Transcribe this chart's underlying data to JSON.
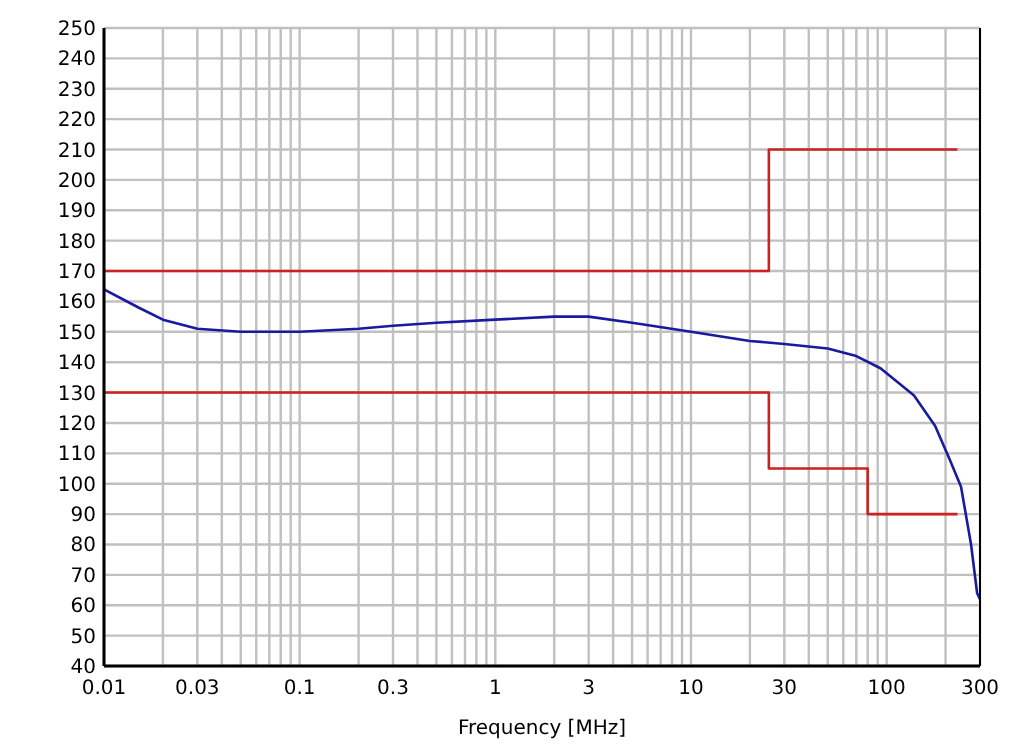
{
  "chart_data": {
    "type": "line",
    "xlabel": "Frequency [MHz]",
    "log": "x",
    "grid": true,
    "marker": "none",
    "line_style": "solid",
    "xlim": [
      0.01,
      300
    ],
    "ylim": [
      40,
      250
    ],
    "xticks": [
      0.01,
      0.03,
      0.1,
      0.3,
      1,
      3,
      10,
      30,
      100,
      300
    ],
    "yticks": [
      40,
      50,
      60,
      70,
      80,
      90,
      100,
      110,
      120,
      130,
      140,
      150,
      160,
      170,
      180,
      190,
      200,
      210,
      220,
      230,
      240,
      250
    ],
    "series": [
      {
        "color": "#cc2222",
        "x": [
          0.01,
          25,
          25,
          230
        ],
        "values": [
          170,
          170,
          210,
          210
        ]
      },
      {
        "color": "#cc2222",
        "x": [
          0.01,
          25,
          25,
          80,
          80,
          230
        ],
        "values": [
          130,
          130,
          105,
          105,
          90,
          90
        ]
      },
      {
        "color": "#1a1aa0",
        "x": [
          0.01,
          0.015,
          0.02,
          0.03,
          0.05,
          0.1,
          0.2,
          0.3,
          0.5,
          1,
          2,
          3,
          5,
          10,
          20,
          30,
          50,
          70,
          93,
          138,
          177,
          210,
          240,
          270,
          290,
          300
        ],
        "values": [
          164,
          158,
          154,
          151,
          150,
          150,
          151,
          152,
          153,
          154,
          155,
          155,
          153,
          150,
          147,
          146,
          144.5,
          142,
          138,
          129,
          119,
          108,
          99,
          80,
          64,
          62
        ]
      }
    ]
  }
}
